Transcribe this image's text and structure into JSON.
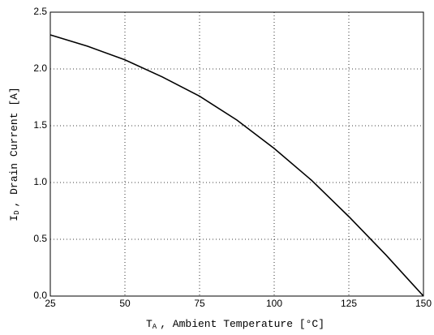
{
  "chart_data": {
    "type": "line",
    "x_symbol": "T",
    "x_subscript": "A",
    "xlabel": ", Ambient Temperature  [°C]",
    "y_symbol": "I",
    "y_subscript": "D",
    "ylabel": ", Drain Current  [A]",
    "x": [
      25,
      37.5,
      50,
      62.5,
      75,
      87.5,
      100,
      112.5,
      125,
      137.5,
      150
    ],
    "series": [
      {
        "color": "#000000",
        "values": [
          2.3,
          2.2,
          2.08,
          1.93,
          1.76,
          1.55,
          1.3,
          1.02,
          0.7,
          0.36,
          0.0
        ]
      }
    ],
    "xlim": [
      25,
      150
    ],
    "xticks": [
      25,
      50,
      75,
      100,
      125,
      150
    ],
    "ylim": [
      0,
      2.5
    ],
    "yticks": [
      {
        "value": 0,
        "label": "0.0"
      },
      0.5,
      {
        "value": 1,
        "label": "1.0"
      },
      1.5,
      {
        "value": 2,
        "label": "2.0"
      },
      2.5
    ],
    "grid": true
  }
}
